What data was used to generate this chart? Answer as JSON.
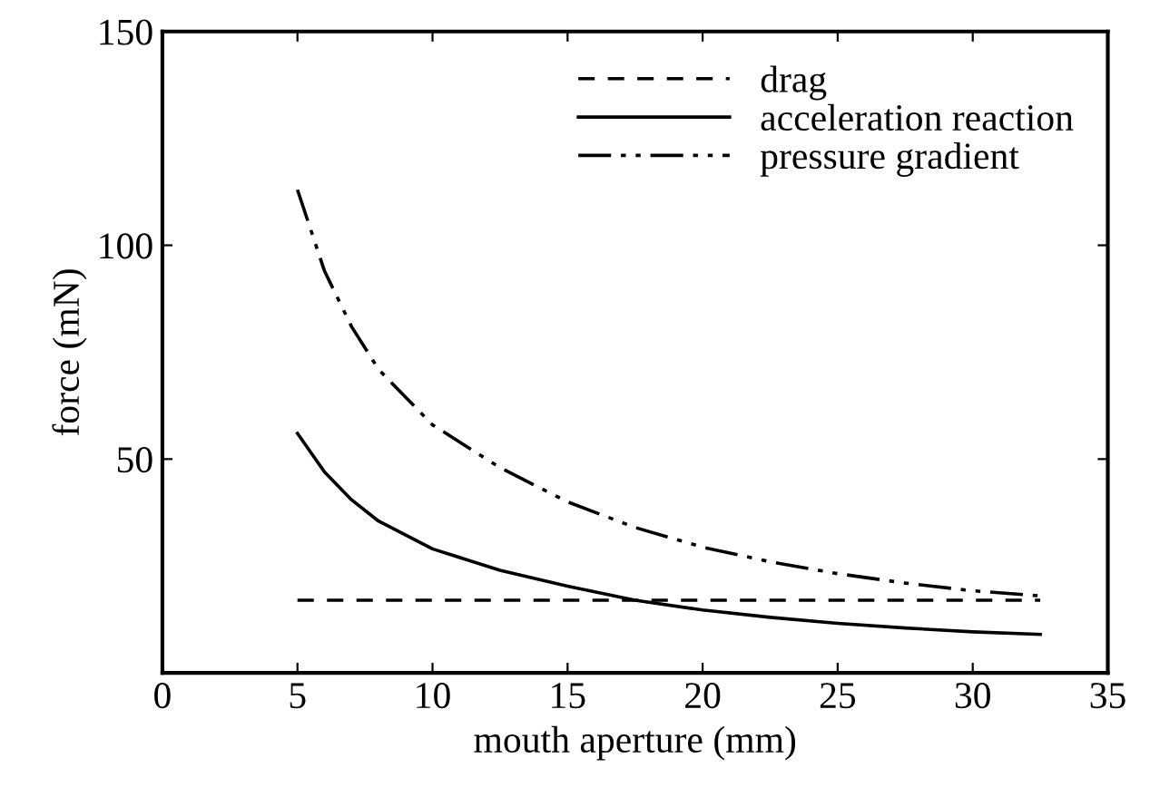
{
  "chart_data": {
    "type": "line",
    "xlabel": "mouth aperture (mm)",
    "ylabel": "force (mN)",
    "x": [
      5,
      6,
      7,
      8,
      10,
      12.5,
      15,
      17.5,
      20,
      22.5,
      25,
      27.5,
      30,
      32.5
    ],
    "series": [
      {
        "name": "drag",
        "color": "#000000",
        "line_style": "dashed",
        "values": [
          17,
          17,
          17,
          17,
          17,
          17,
          17,
          17,
          17,
          17,
          17,
          17,
          17,
          17
        ]
      },
      {
        "name": "acceleration reaction",
        "color": "#000000",
        "line_style": "solid",
        "values": [
          56,
          47,
          40.5,
          35.5,
          29,
          24,
          20.3,
          17,
          14.7,
          13,
          11.6,
          10.5,
          9.6,
          9
        ]
      },
      {
        "name": "pressure gradient",
        "color": "#000000",
        "line_style": "dashdot",
        "values": [
          113,
          94,
          81,
          71,
          58,
          48,
          40,
          34,
          29.4,
          26,
          23.2,
          21,
          19.2,
          18
        ]
      }
    ],
    "xlim": [
      0,
      35
    ],
    "ylim": [
      0,
      150
    ],
    "xticks": [
      0,
      5,
      10,
      15,
      20,
      25,
      30,
      35
    ],
    "yticks": [
      50,
      100,
      150
    ],
    "legend": "top right",
    "grid": false,
    "marker": "none"
  }
}
